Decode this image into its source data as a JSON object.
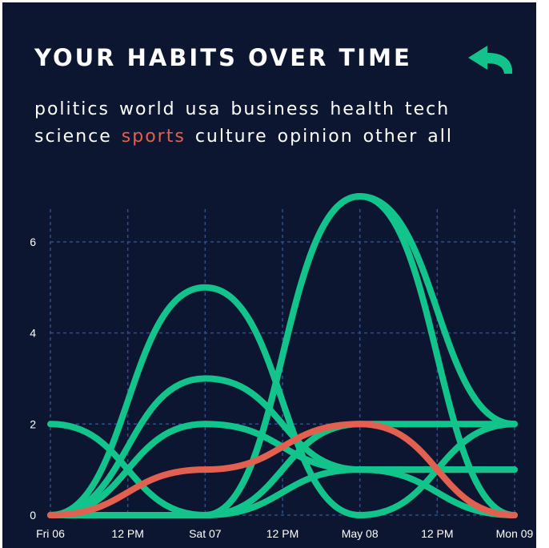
{
  "header": {
    "title": "YOUR HABITS OVER TIME",
    "back_icon": "back-arrow-icon"
  },
  "topics": {
    "items": [
      "politics",
      "world",
      "usa",
      "business",
      "health",
      "tech",
      "science",
      "sports",
      "culture",
      "opinion",
      "other",
      "all"
    ],
    "selected": "sports"
  },
  "colors": {
    "background": "#0c1631",
    "accent": "#12c48b",
    "selected": "#e2604f",
    "grid": "#2d4f8e",
    "text": "#ffffff"
  },
  "chart_data": {
    "type": "line",
    "title": "",
    "xlabel": "",
    "ylabel": "",
    "x": [
      "Fri 06",
      "12 PM",
      "Sat 07",
      "12 PM",
      "May 08",
      "12 PM",
      "Mon 09"
    ],
    "ylim": [
      0,
      7
    ],
    "yticks": [
      "0",
      "2",
      "4",
      "6"
    ],
    "grid": true,
    "curve": "smooth",
    "series": [
      {
        "values": [
          0,
          null,
          5,
          null,
          0,
          null,
          2
        ],
        "highlighted": false
      },
      {
        "values": [
          0,
          null,
          3,
          null,
          1,
          null,
          1
        ],
        "highlighted": false
      },
      {
        "values": [
          0,
          null,
          2,
          null,
          1,
          null,
          0
        ],
        "highlighted": false
      },
      {
        "values": [
          2,
          null,
          0,
          null,
          7,
          null,
          0
        ],
        "highlighted": false
      },
      {
        "values": [
          0,
          null,
          0,
          null,
          7,
          null,
          2
        ],
        "highlighted": false
      },
      {
        "values": [
          0,
          null,
          0,
          null,
          2,
          null,
          2
        ],
        "highlighted": false
      },
      {
        "values": [
          0,
          null,
          0,
          null,
          1,
          null,
          1
        ],
        "highlighted": false
      },
      {
        "values": [
          0,
          null,
          1,
          null,
          2,
          null,
          0
        ],
        "highlighted": true
      }
    ]
  }
}
